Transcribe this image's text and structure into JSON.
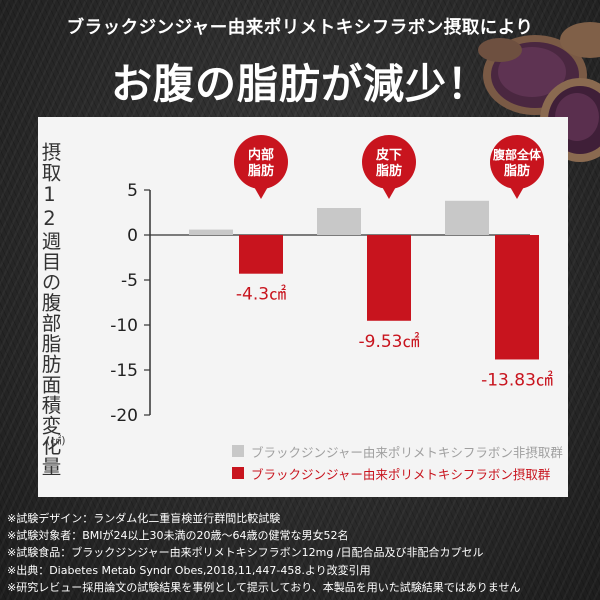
{
  "lead": "ブラックジンジャー由来ポリメトキシフラボン摂取により",
  "headline": "お腹の脂肪が減少！",
  "chart_data": {
    "type": "bar",
    "ylabel": "摂取12週目の腹部脂肪面積変化量",
    "yunit": "(㎠)",
    "ylim": [
      -20,
      5
    ],
    "yticks": [
      5,
      0,
      -5,
      -10,
      -15,
      -20
    ],
    "categories": [
      "内部脂肪",
      "皮下脂肪",
      "腹部全体脂肪"
    ],
    "category_lines": [
      [
        "内部",
        "脂肪"
      ],
      [
        "皮下",
        "脂肪"
      ],
      [
        "腹部全体",
        "脂肪"
      ]
    ],
    "series": [
      {
        "name": "ブラックジンジャー由来ポリメトキシフラボン非摂取群",
        "color": "#c8c8c8",
        "values": [
          0.6,
          3.0,
          3.8
        ]
      },
      {
        "name": "ブラックジンジャー由来ポリメトキシフラボン摂取群",
        "color": "#c8141e",
        "values": [
          -4.3,
          -9.53,
          -13.83
        ]
      }
    ],
    "data_labels": [
      "-4.3㎠",
      "-9.53㎠",
      "-13.83㎠"
    ],
    "label_color": "#c8141e",
    "legend_position": "bottom",
    "grid": false
  },
  "notes": [
    "※試験デザイン：ランダム化二重盲検並行群間比較試験",
    "※試験対象者：BMIが24以上30未満の20歳～64歳の健常な男女52名",
    "※試験食品：ブラックジンジャー由来ポリメトキシフラボン12mg /日配合品及び非配合カプセル",
    "※出典：Diabetes Metab Syndr Obes,2018,11,447-458.より改変引用",
    "※研究レビュー採用論文の試験結果を事例として提示しており、本製品を用いた試験結果ではありません"
  ]
}
